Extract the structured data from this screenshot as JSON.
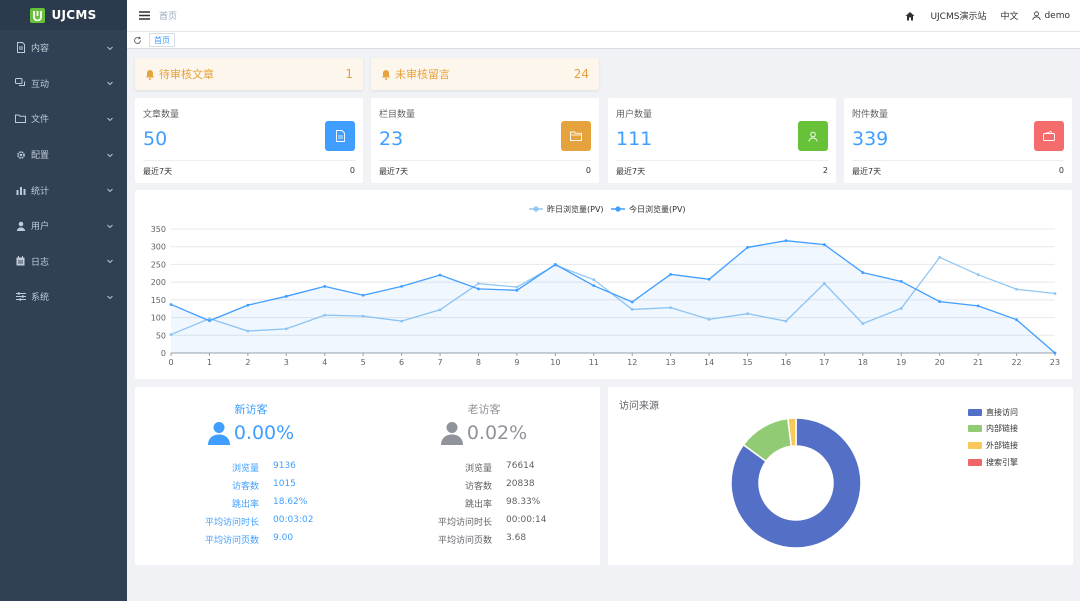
{
  "app": {
    "brand": "UJCMS"
  },
  "colors": {
    "sidebar": "#304156",
    "accent": "#409eff",
    "warning": "#e6a23c",
    "success": "#67c23a",
    "danger": "#f56c6c"
  },
  "sidebar": {
    "items": [
      {
        "label": "内容",
        "icon": "document-icon"
      },
      {
        "label": "互动",
        "icon": "chat-icon"
      },
      {
        "label": "文件",
        "icon": "folder-icon"
      },
      {
        "label": "配置",
        "icon": "gear-icon"
      },
      {
        "label": "统计",
        "icon": "bar-chart-icon"
      },
      {
        "label": "用户",
        "icon": "user-icon"
      },
      {
        "label": "日志",
        "icon": "calendar-icon"
      },
      {
        "label": "系统",
        "icon": "sliders-icon"
      }
    ]
  },
  "header": {
    "breadcrumb": "首页",
    "site": "UJCMS演示站",
    "lang": "中文",
    "user": "demo"
  },
  "tags": {
    "current": "首页"
  },
  "alerts": [
    {
      "label": "待审核文章",
      "value": "1"
    },
    {
      "label": "未审核留言",
      "value": "24"
    }
  ],
  "stats": [
    {
      "title": "文章数量",
      "value": "50",
      "foot_label": "最近7天",
      "foot_value": "0",
      "icon": "document-icon",
      "color": "#409eff"
    },
    {
      "title": "栏目数量",
      "value": "23",
      "foot_label": "最近7天",
      "foot_value": "0",
      "icon": "folder-icon",
      "color": "#e6a23c"
    },
    {
      "title": "用户数量",
      "value": "111",
      "foot_label": "最近7天",
      "foot_value": "2",
      "icon": "user-icon",
      "color": "#67c23a"
    },
    {
      "title": "附件数量",
      "value": "339",
      "foot_label": "最近7天",
      "foot_value": "0",
      "icon": "wallet-icon",
      "color": "#f56c6c"
    }
  ],
  "chart_data": {
    "type": "line",
    "title": "",
    "x": [
      0,
      1,
      2,
      3,
      4,
      5,
      6,
      7,
      8,
      9,
      10,
      11,
      12,
      13,
      14,
      15,
      16,
      17,
      18,
      19,
      20,
      21,
      22,
      23
    ],
    "ylim": [
      0,
      350
    ],
    "yticks": [
      0,
      50,
      100,
      150,
      200,
      250,
      300,
      350
    ],
    "grid": true,
    "legend": "top-center",
    "series": [
      {
        "name": "昨日浏览量(PV)",
        "color": "#91c7f3",
        "values": [
          52,
          97,
          62,
          68,
          107,
          104,
          90,
          122,
          196,
          186,
          248,
          207,
          123,
          128,
          95,
          111,
          90,
          196,
          83,
          126,
          270,
          221,
          180,
          168
        ]
      },
      {
        "name": "今日浏览量(PV)",
        "color": "#409eff",
        "area": true,
        "values": [
          137,
          91,
          135,
          160,
          188,
          163,
          188,
          220,
          181,
          177,
          250,
          190,
          144,
          222,
          208,
          298,
          317,
          306,
          227,
          202,
          145,
          133,
          94,
          0
        ]
      }
    ]
  },
  "visitors": [
    {
      "title": "新访客",
      "percent": "0.00%",
      "color": "#409eff",
      "rows": [
        {
          "k": "浏览量",
          "v": "9136"
        },
        {
          "k": "访客数",
          "v": "1015"
        },
        {
          "k": "跳出率",
          "v": "18.62%"
        },
        {
          "k": "平均访问时长",
          "v": "00:03:02"
        },
        {
          "k": "平均访问页数",
          "v": "9.00"
        }
      ]
    },
    {
      "title": "老访客",
      "percent": "0.02%",
      "color": "#909399",
      "rows": [
        {
          "k": "浏览量",
          "v": "76614"
        },
        {
          "k": "访客数",
          "v": "20838"
        },
        {
          "k": "跳出率",
          "v": "98.33%"
        },
        {
          "k": "平均访问时长",
          "v": "00:00:14"
        },
        {
          "k": "平均访问页数",
          "v": "3.68"
        }
      ]
    }
  ],
  "source": {
    "title": "访问来源",
    "chart_data": {
      "type": "pie",
      "legend": "right",
      "slices": [
        {
          "name": "直接访问",
          "value": 85,
          "color": "#5470c6"
        },
        {
          "name": "内部链接",
          "value": 13,
          "color": "#91cc75"
        },
        {
          "name": "外部链接",
          "value": 2,
          "color": "#fac858"
        },
        {
          "name": "搜索引擎",
          "value": 0,
          "color": "#ee6666"
        }
      ]
    }
  }
}
